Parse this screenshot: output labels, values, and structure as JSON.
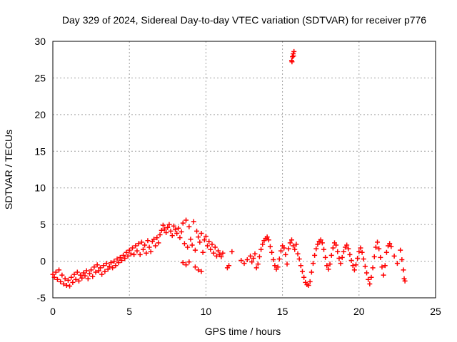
{
  "chart_data": {
    "type": "scatter",
    "title": "Day 329 of 2024, Sidereal Day-to-day VTEC variation (SDTVAR) for receiver p776",
    "xlabel": "GPS time / hours",
    "ylabel": "SDTVAR / TECUs",
    "xlim": [
      0,
      25
    ],
    "ylim": [
      -5,
      30
    ],
    "xticks": [
      "0",
      "5",
      "10",
      "15",
      "20",
      "25"
    ],
    "yticks": [
      "-5",
      "0",
      "5",
      "10",
      "15",
      "20",
      "25",
      "30"
    ],
    "grid": true,
    "marker": "plus",
    "color": "#ff0000",
    "series": [
      {
        "name": "SDTVAR",
        "points": [
          [
            0.0,
            -1.8
          ],
          [
            0.1,
            -2.2
          ],
          [
            0.2,
            -1.5
          ],
          [
            0.3,
            -2.5
          ],
          [
            0.4,
            -1.2
          ],
          [
            0.5,
            -2.8
          ],
          [
            0.6,
            -1.9
          ],
          [
            0.7,
            -3.1
          ],
          [
            0.8,
            -2.4
          ],
          [
            0.9,
            -3.3
          ],
          [
            1.0,
            -2.6
          ],
          [
            1.1,
            -3.4
          ],
          [
            1.2,
            -2.2
          ],
          [
            1.3,
            -2.9
          ],
          [
            1.4,
            -1.8
          ],
          [
            1.5,
            -2.5
          ],
          [
            1.6,
            -1.5
          ],
          [
            1.7,
            -2.7
          ],
          [
            1.8,
            -1.9
          ],
          [
            1.9,
            -2.3
          ],
          [
            2.0,
            -1.6
          ],
          [
            2.1,
            -2.0
          ],
          [
            2.2,
            -1.3
          ],
          [
            2.3,
            -2.4
          ],
          [
            2.4,
            -1.7
          ],
          [
            2.5,
            -1.2
          ],
          [
            2.6,
            -2.1
          ],
          [
            2.7,
            -0.8
          ],
          [
            2.8,
            -1.5
          ],
          [
            2.9,
            -0.5
          ],
          [
            3.0,
            -1.3
          ],
          [
            3.1,
            -0.9
          ],
          [
            3.2,
            -1.8
          ],
          [
            3.3,
            -0.6
          ],
          [
            3.4,
            -1.4
          ],
          [
            3.5,
            -0.3
          ],
          [
            3.6,
            -1.1
          ],
          [
            3.7,
            -0.7
          ],
          [
            3.8,
            -0.2
          ],
          [
            3.9,
            -0.9
          ],
          [
            4.0,
            0.0
          ],
          [
            4.1,
            -0.6
          ],
          [
            4.2,
            0.3
          ],
          [
            4.3,
            -0.2
          ],
          [
            4.4,
            0.5
          ],
          [
            4.5,
            0.1
          ],
          [
            4.6,
            0.8
          ],
          [
            4.7,
            0.4
          ],
          [
            4.8,
            1.2
          ],
          [
            4.9,
            0.7
          ],
          [
            5.0,
            1.5
          ],
          [
            5.1,
            1.0
          ],
          [
            5.2,
            1.8
          ],
          [
            5.3,
            0.9
          ],
          [
            5.4,
            2.1
          ],
          [
            5.5,
            1.4
          ],
          [
            5.6,
            2.4
          ],
          [
            5.7,
            0.9
          ],
          [
            5.8,
            2.6
          ],
          [
            5.9,
            1.6
          ],
          [
            6.0,
            2.2
          ],
          [
            6.1,
            1.1
          ],
          [
            6.2,
            2.8
          ],
          [
            6.3,
            1.9
          ],
          [
            6.4,
            1.3
          ],
          [
            6.5,
            2.7
          ],
          [
            6.6,
            3.0
          ],
          [
            6.7,
            2.1
          ],
          [
            6.8,
            3.2
          ],
          [
            6.9,
            2.5
          ],
          [
            7.0,
            3.6
          ],
          [
            7.1,
            4.2
          ],
          [
            7.2,
            4.9
          ],
          [
            7.3,
            4.4
          ],
          [
            7.4,
            3.9
          ],
          [
            7.5,
            4.6
          ],
          [
            7.6,
            5.0
          ],
          [
            7.7,
            4.1
          ],
          [
            7.8,
            3.5
          ],
          [
            7.9,
            4.8
          ],
          [
            8.0,
            4.3
          ],
          [
            8.1,
            3.8
          ],
          [
            8.2,
            4.5
          ],
          [
            8.3,
            3.2
          ],
          [
            8.4,
            4.0
          ],
          [
            8.5,
            5.2
          ],
          [
            8.6,
            2.4
          ],
          [
            8.7,
            5.6
          ],
          [
            8.8,
            1.9
          ],
          [
            8.9,
            4.7
          ],
          [
            9.0,
            3.0
          ],
          [
            9.1,
            2.2
          ],
          [
            9.2,
            5.4
          ],
          [
            9.3,
            1.5
          ],
          [
            9.4,
            4.1
          ],
          [
            9.5,
            3.3
          ],
          [
            9.6,
            2.6
          ],
          [
            9.7,
            3.8
          ],
          [
            9.8,
            1.2
          ],
          [
            9.9,
            2.9
          ],
          [
            10.0,
            3.4
          ],
          [
            10.1,
            2.1
          ],
          [
            10.2,
            2.7
          ],
          [
            10.3,
            1.6
          ],
          [
            10.4,
            2.3
          ],
          [
            10.5,
            1.1
          ],
          [
            10.6,
            1.9
          ],
          [
            10.7,
            0.7
          ],
          [
            10.8,
            1.4
          ],
          [
            10.9,
            0.9
          ],
          [
            11.0,
            0.6
          ],
          [
            11.1,
            1.1
          ],
          [
            8.5,
            -0.2
          ],
          [
            8.7,
            -0.5
          ],
          [
            8.9,
            -0.1
          ],
          [
            9.3,
            -0.8
          ],
          [
            9.5,
            -1.2
          ],
          [
            9.7,
            -1.4
          ],
          [
            11.4,
            -0.9
          ],
          [
            11.5,
            -0.6
          ],
          [
            11.7,
            1.3
          ],
          [
            12.3,
            0.1
          ],
          [
            12.5,
            -0.3
          ],
          [
            12.7,
            0.2
          ],
          [
            12.9,
            0.7
          ],
          [
            13.0,
            -0.1
          ],
          [
            13.1,
            0.4
          ],
          [
            13.2,
            1.0
          ],
          [
            13.3,
            -0.9
          ],
          [
            13.4,
            -0.4
          ],
          [
            13.5,
            0.6
          ],
          [
            13.6,
            1.6
          ],
          [
            13.7,
            2.3
          ],
          [
            13.8,
            2.8
          ],
          [
            13.9,
            3.1
          ],
          [
            14.0,
            3.3
          ],
          [
            14.1,
            2.9
          ],
          [
            14.2,
            2.0
          ],
          [
            14.3,
            1.2
          ],
          [
            14.4,
            0.2
          ],
          [
            14.5,
            -0.6
          ],
          [
            14.6,
            -1.1
          ],
          [
            14.7,
            -0.8
          ],
          [
            14.8,
            0.3
          ],
          [
            14.9,
            1.4
          ],
          [
            15.0,
            2.1
          ],
          [
            15.1,
            1.8
          ],
          [
            15.2,
            0.9
          ],
          [
            15.3,
            -0.4
          ],
          [
            15.4,
            1.7
          ],
          [
            15.5,
            2.5
          ],
          [
            15.6,
            2.9
          ],
          [
            15.7,
            2.1
          ],
          [
            15.8,
            1.6
          ],
          [
            15.9,
            2.3
          ],
          [
            16.0,
            1.0
          ],
          [
            16.1,
            0.3
          ],
          [
            16.2,
            -0.6
          ],
          [
            16.3,
            -1.4
          ],
          [
            16.4,
            -2.2
          ],
          [
            16.5,
            -2.9
          ],
          [
            16.6,
            -3.2
          ],
          [
            16.7,
            -3.3
          ],
          [
            16.8,
            -2.8
          ],
          [
            16.9,
            -1.5
          ],
          [
            17.0,
            -0.3
          ],
          [
            17.1,
            0.8
          ],
          [
            17.2,
            1.7
          ],
          [
            17.3,
            2.3
          ],
          [
            17.4,
            2.7
          ],
          [
            17.5,
            2.9
          ],
          [
            17.6,
            2.5
          ],
          [
            17.7,
            1.6
          ],
          [
            17.8,
            0.5
          ],
          [
            17.9,
            -0.6
          ],
          [
            18.0,
            -1.1
          ],
          [
            18.1,
            -0.4
          ],
          [
            18.2,
            0.8
          ],
          [
            18.3,
            1.8
          ],
          [
            18.4,
            2.5
          ],
          [
            18.5,
            2.2
          ],
          [
            18.6,
            1.3
          ],
          [
            18.7,
            0.4
          ],
          [
            18.8,
            -0.3
          ],
          [
            18.9,
            0.5
          ],
          [
            19.0,
            1.3
          ],
          [
            19.1,
            1.9
          ],
          [
            19.2,
            2.2
          ],
          [
            19.3,
            1.7
          ],
          [
            19.4,
            0.9
          ],
          [
            19.5,
            0.1
          ],
          [
            19.6,
            -0.6
          ],
          [
            19.7,
            -1.2
          ],
          [
            19.8,
            -0.5
          ],
          [
            19.9,
            0.4
          ],
          [
            20.0,
            1.3
          ],
          [
            20.1,
            1.8
          ],
          [
            20.2,
            1.2
          ],
          [
            20.3,
            0.3
          ],
          [
            20.4,
            -0.7
          ],
          [
            20.5,
            -1.6
          ],
          [
            20.6,
            -2.5
          ],
          [
            20.7,
            -3.1
          ],
          [
            20.8,
            -2.2
          ],
          [
            20.9,
            -0.9
          ],
          [
            21.0,
            0.6
          ],
          [
            21.1,
            1.9
          ],
          [
            21.2,
            2.6
          ],
          [
            21.3,
            1.7
          ],
          [
            21.4,
            0.5
          ],
          [
            21.5,
            -0.8
          ],
          [
            21.6,
            -1.9
          ],
          [
            21.7,
            -0.6
          ],
          [
            21.8,
            1.2
          ],
          [
            21.9,
            2.1
          ],
          [
            22.0,
            2.4
          ],
          [
            22.1,
            2.0
          ],
          [
            22.3,
            0.7
          ],
          [
            22.5,
            -0.3
          ],
          [
            22.7,
            1.5
          ],
          [
            22.8,
            0.2
          ],
          [
            22.9,
            -1.2
          ],
          [
            22.95,
            -2.4
          ],
          [
            23.0,
            -2.7
          ],
          [
            15.6,
            27.4
          ],
          [
            15.65,
            27.9
          ],
          [
            15.7,
            28.3
          ],
          [
            15.75,
            28.6
          ],
          [
            15.62,
            27.2
          ],
          [
            15.72,
            28.0
          ]
        ]
      }
    ]
  }
}
